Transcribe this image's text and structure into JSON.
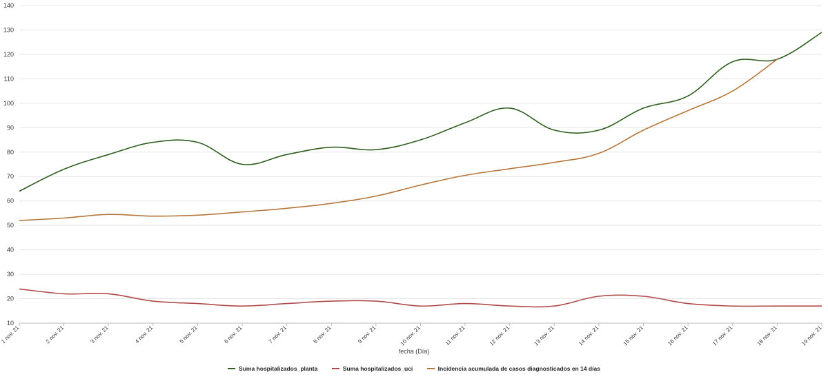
{
  "chart_data": {
    "type": "line",
    "xlabel": "fecha (Día)",
    "ylabel": "",
    "ylim": [
      10,
      140
    ],
    "yticks": [
      10,
      20,
      30,
      40,
      50,
      60,
      70,
      80,
      90,
      100,
      110,
      120,
      130,
      140
    ],
    "grid": true,
    "legend_position": "bottom",
    "categories": [
      "1 nov. 21",
      "2 nov. 21",
      "3 nov. 21",
      "4 nov. 21",
      "5 nov. 21",
      "6 nov. 21",
      "7 nov. 21",
      "8 nov. 21",
      "9 nov. 21",
      "10 nov. 21",
      "11 nov. 21",
      "12 nov. 21",
      "13 nov. 21",
      "14 nov. 21",
      "15 nov. 21",
      "16 nov. 21",
      "17 nov. 21",
      "18 nov. 21",
      "19 nov. 21"
    ],
    "series": [
      {
        "name": "Suma hospitalizados_planta",
        "color": "#2d5e1e",
        "values": [
          64,
          73,
          79,
          84,
          84,
          75,
          79,
          82,
          81,
          85,
          92,
          98,
          89,
          89,
          98,
          103,
          117,
          118,
          129
        ]
      },
      {
        "name": "Suma hospitalizados_uci",
        "color": "#b04a4a",
        "values": [
          24,
          22,
          22,
          19,
          18,
          17,
          18,
          19,
          19,
          17,
          18,
          17,
          17,
          21,
          21,
          18,
          17,
          17,
          17
        ]
      },
      {
        "name": "Incidencia acumulada de casos diagnosticados en 14 días",
        "color": "#b5763a",
        "values": [
          52,
          53,
          54.5,
          53.8,
          54.2,
          55.5,
          57,
          59,
          62,
          66.5,
          70.5,
          73.2,
          75.8,
          79.5,
          89,
          97,
          105,
          118,
          null
        ]
      }
    ]
  }
}
